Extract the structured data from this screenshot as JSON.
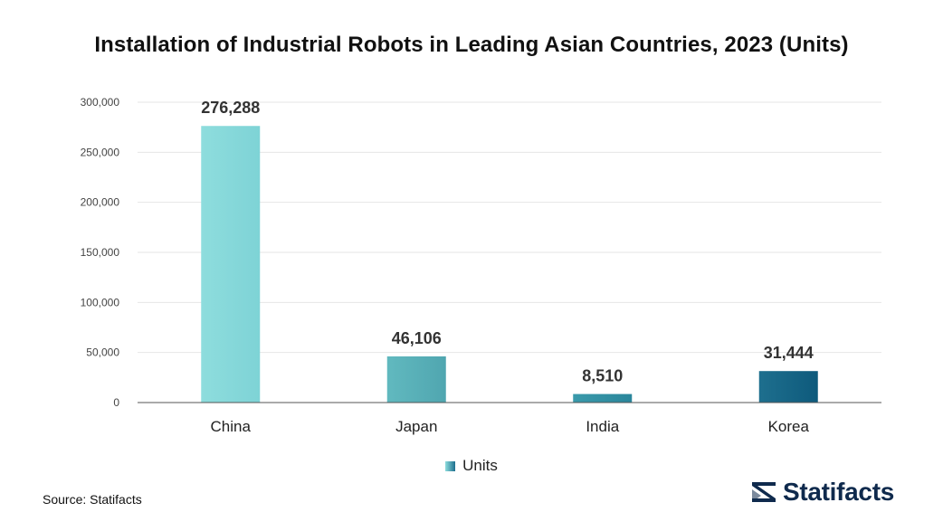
{
  "title": "Installation of Industrial Robots in Leading Asian Countries, 2023 (Units)",
  "chart_data": {
    "type": "bar",
    "title": "Installation of Industrial Robots in Leading Asian Countries, 2023 (Units)",
    "categories": [
      "China",
      "Japan",
      "India",
      "Korea"
    ],
    "series": [
      {
        "name": "Units",
        "values": [
          276288,
          46106,
          8510,
          31444
        ]
      }
    ],
    "value_labels": [
      "276,288",
      "46,106",
      "8,510",
      "31,444"
    ],
    "yticks": [
      0,
      50000,
      100000,
      150000,
      200000,
      250000,
      300000
    ],
    "ytick_labels": [
      "0",
      "50,000",
      "100,000",
      "150,000",
      "200,000",
      "250,000",
      "300,000"
    ],
    "ylim": [
      0,
      300000
    ],
    "grid": true,
    "legend_position": "bottom-center",
    "bar_colors": [
      [
        "#8edddd",
        "#7ed3d6"
      ],
      [
        "#61b9bf",
        "#50a6b0"
      ],
      [
        "#3a9aab",
        "#2a869b"
      ],
      [
        "#1e6f8e",
        "#0e5a7c"
      ]
    ],
    "axis_color": "#555555",
    "grid_color": "#e6e6e6"
  },
  "legend": {
    "label": "Units"
  },
  "source": "Source: Statifacts",
  "brand": {
    "name": "Statifacts",
    "icon": "statifacts-logo-icon",
    "color": "#0f2a4d"
  }
}
